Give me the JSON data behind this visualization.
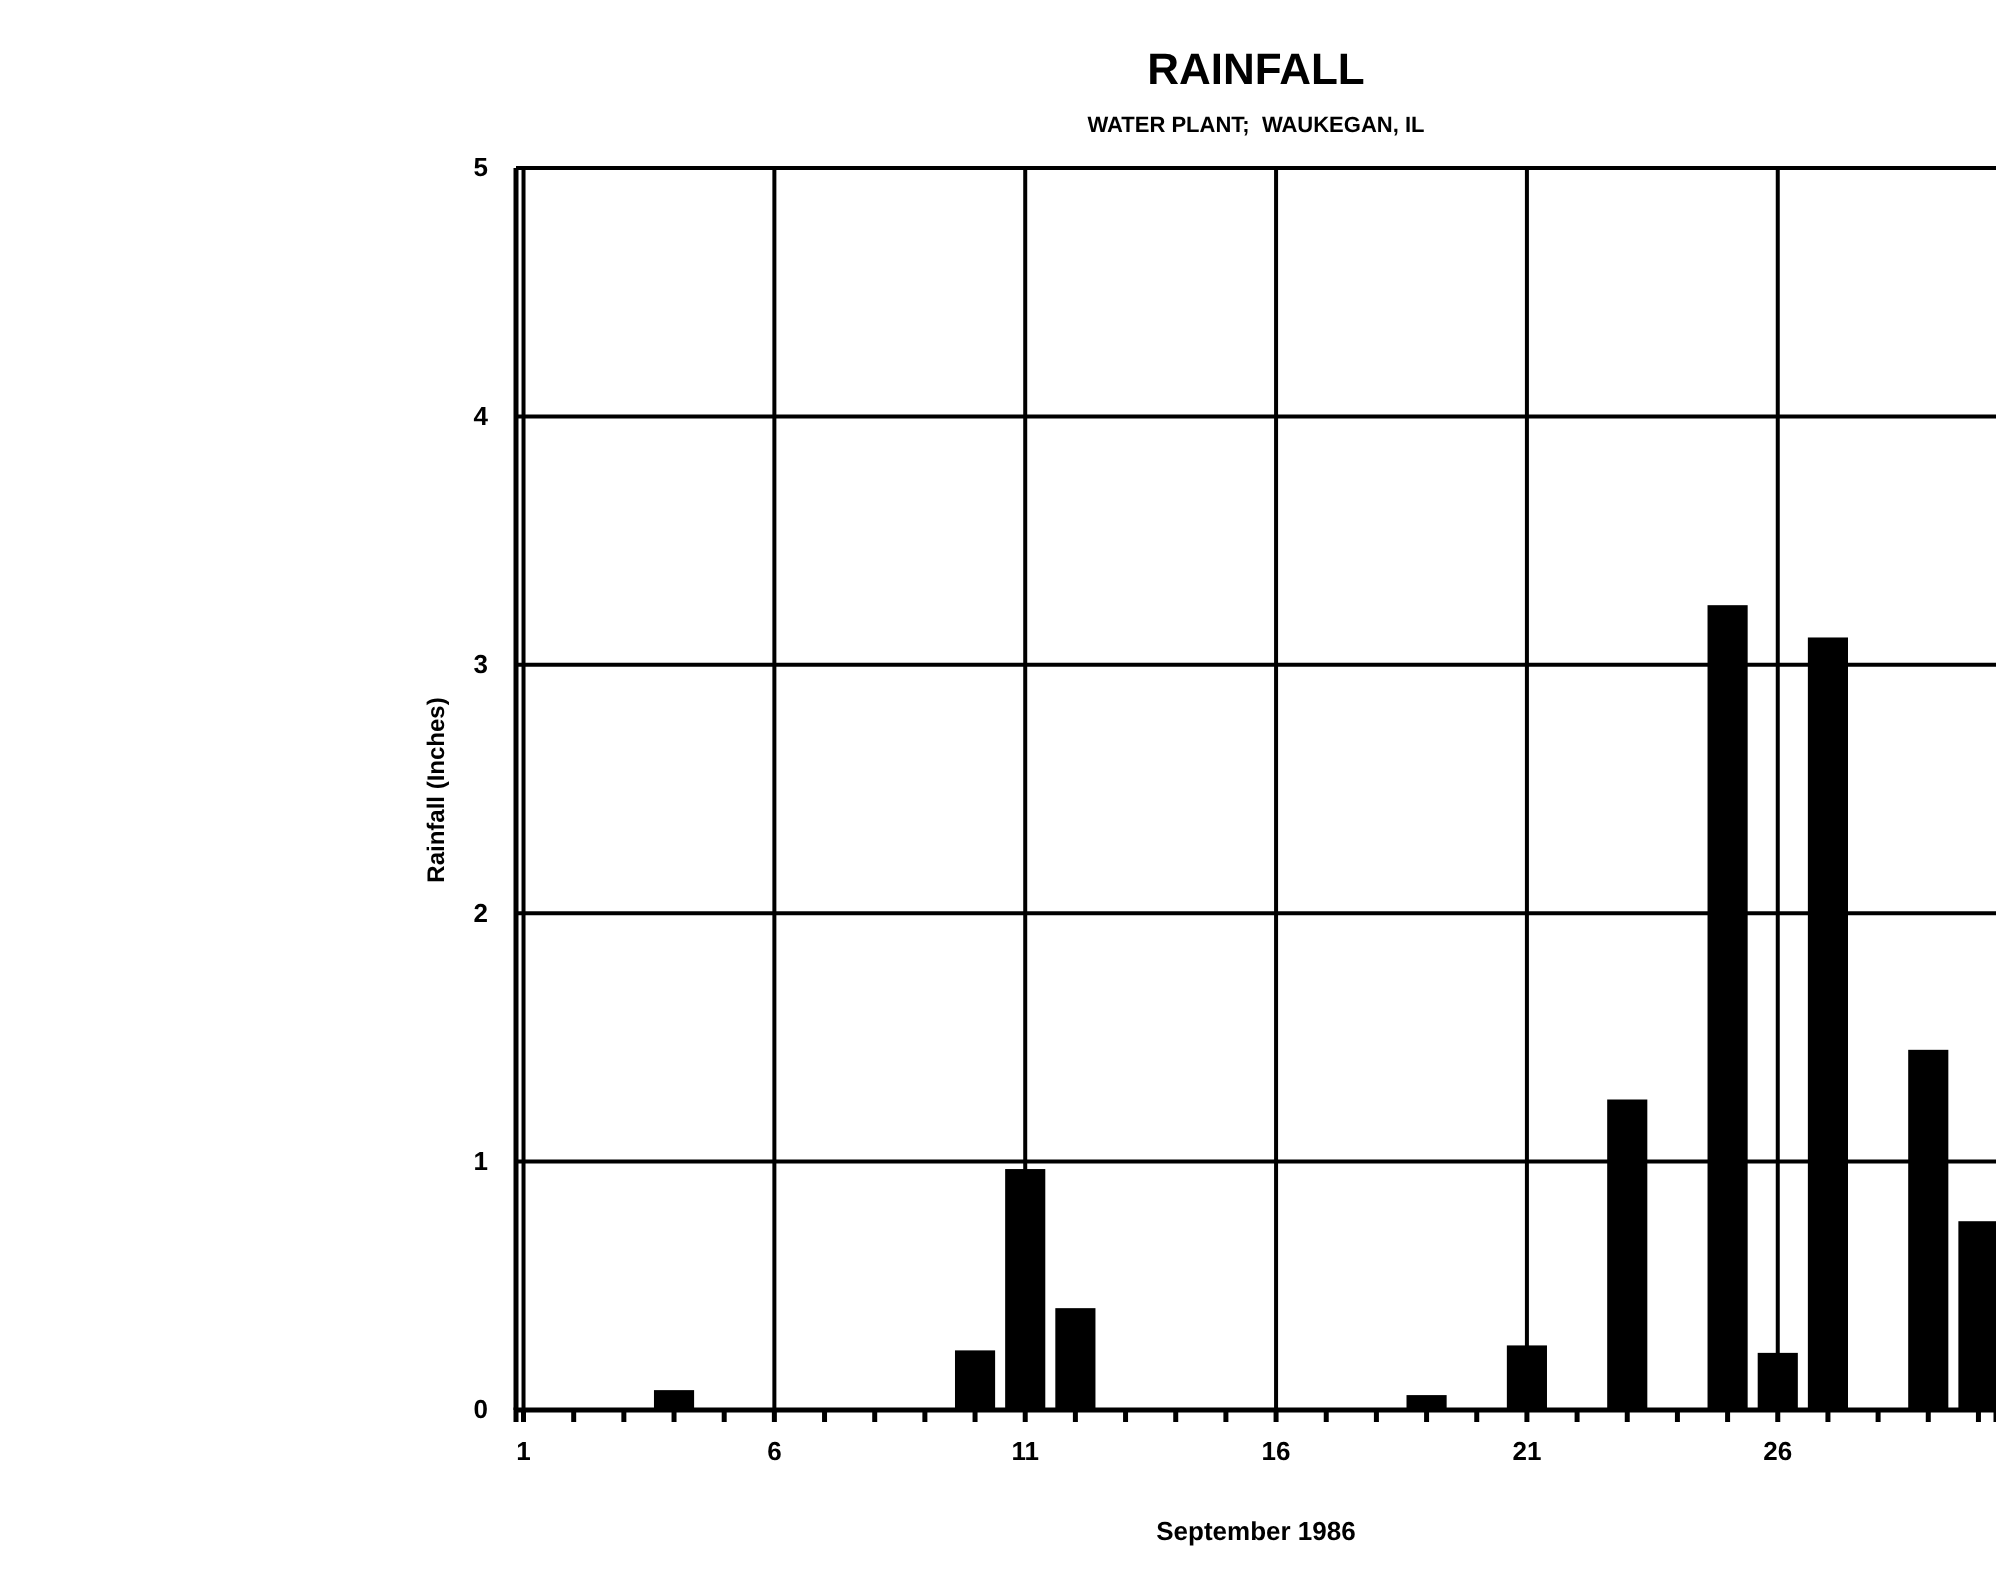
{
  "chart_data": {
    "type": "bar",
    "title": "RAINFALL",
    "subtitle": "WATER PLANT;  WAUKEGAN, IL",
    "xlabel": "September 1986",
    "ylabel": "Rainfall (Inches)",
    "x": [
      4,
      10,
      11,
      12,
      19,
      21,
      23,
      25,
      26,
      27,
      29,
      30
    ],
    "values": [
      0.08,
      0.24,
      0.97,
      0.41,
      0.06,
      0.26,
      1.25,
      3.24,
      0.23,
      3.11,
      1.45,
      0.76
    ],
    "color": "#000000",
    "xlim": [
      0.85,
      30.35
    ],
    "xticks": [
      1,
      {
        "value": 2,
        "label": null
      },
      {
        "value": 3,
        "label": null
      },
      {
        "value": 4,
        "label": null
      },
      {
        "value": 5,
        "label": null
      },
      6,
      {
        "value": 7,
        "label": null
      },
      {
        "value": 8,
        "label": null
      },
      {
        "value": 9,
        "label": null
      },
      {
        "value": 10,
        "label": null
      },
      11,
      {
        "value": 12,
        "label": null
      },
      {
        "value": 13,
        "label": null
      },
      {
        "value": 14,
        "label": null
      },
      {
        "value": 15,
        "label": null
      },
      16,
      {
        "value": 17,
        "label": null
      },
      {
        "value": 18,
        "label": null
      },
      {
        "value": 19,
        "label": null
      },
      {
        "value": 20,
        "label": null
      },
      21,
      {
        "value": 22,
        "label": null
      },
      {
        "value": 23,
        "label": null
      },
      {
        "value": 24,
        "label": null
      },
      {
        "value": 25,
        "label": null
      },
      26,
      {
        "value": 27,
        "label": null
      },
      {
        "value": 28,
        "label": null
      },
      {
        "value": 29,
        "label": null
      },
      {
        "value": 30,
        "label": null
      }
    ],
    "ylim": [
      0,
      5
    ],
    "yticks": [
      0,
      1,
      2,
      3,
      4,
      5
    ],
    "grid": true
  }
}
